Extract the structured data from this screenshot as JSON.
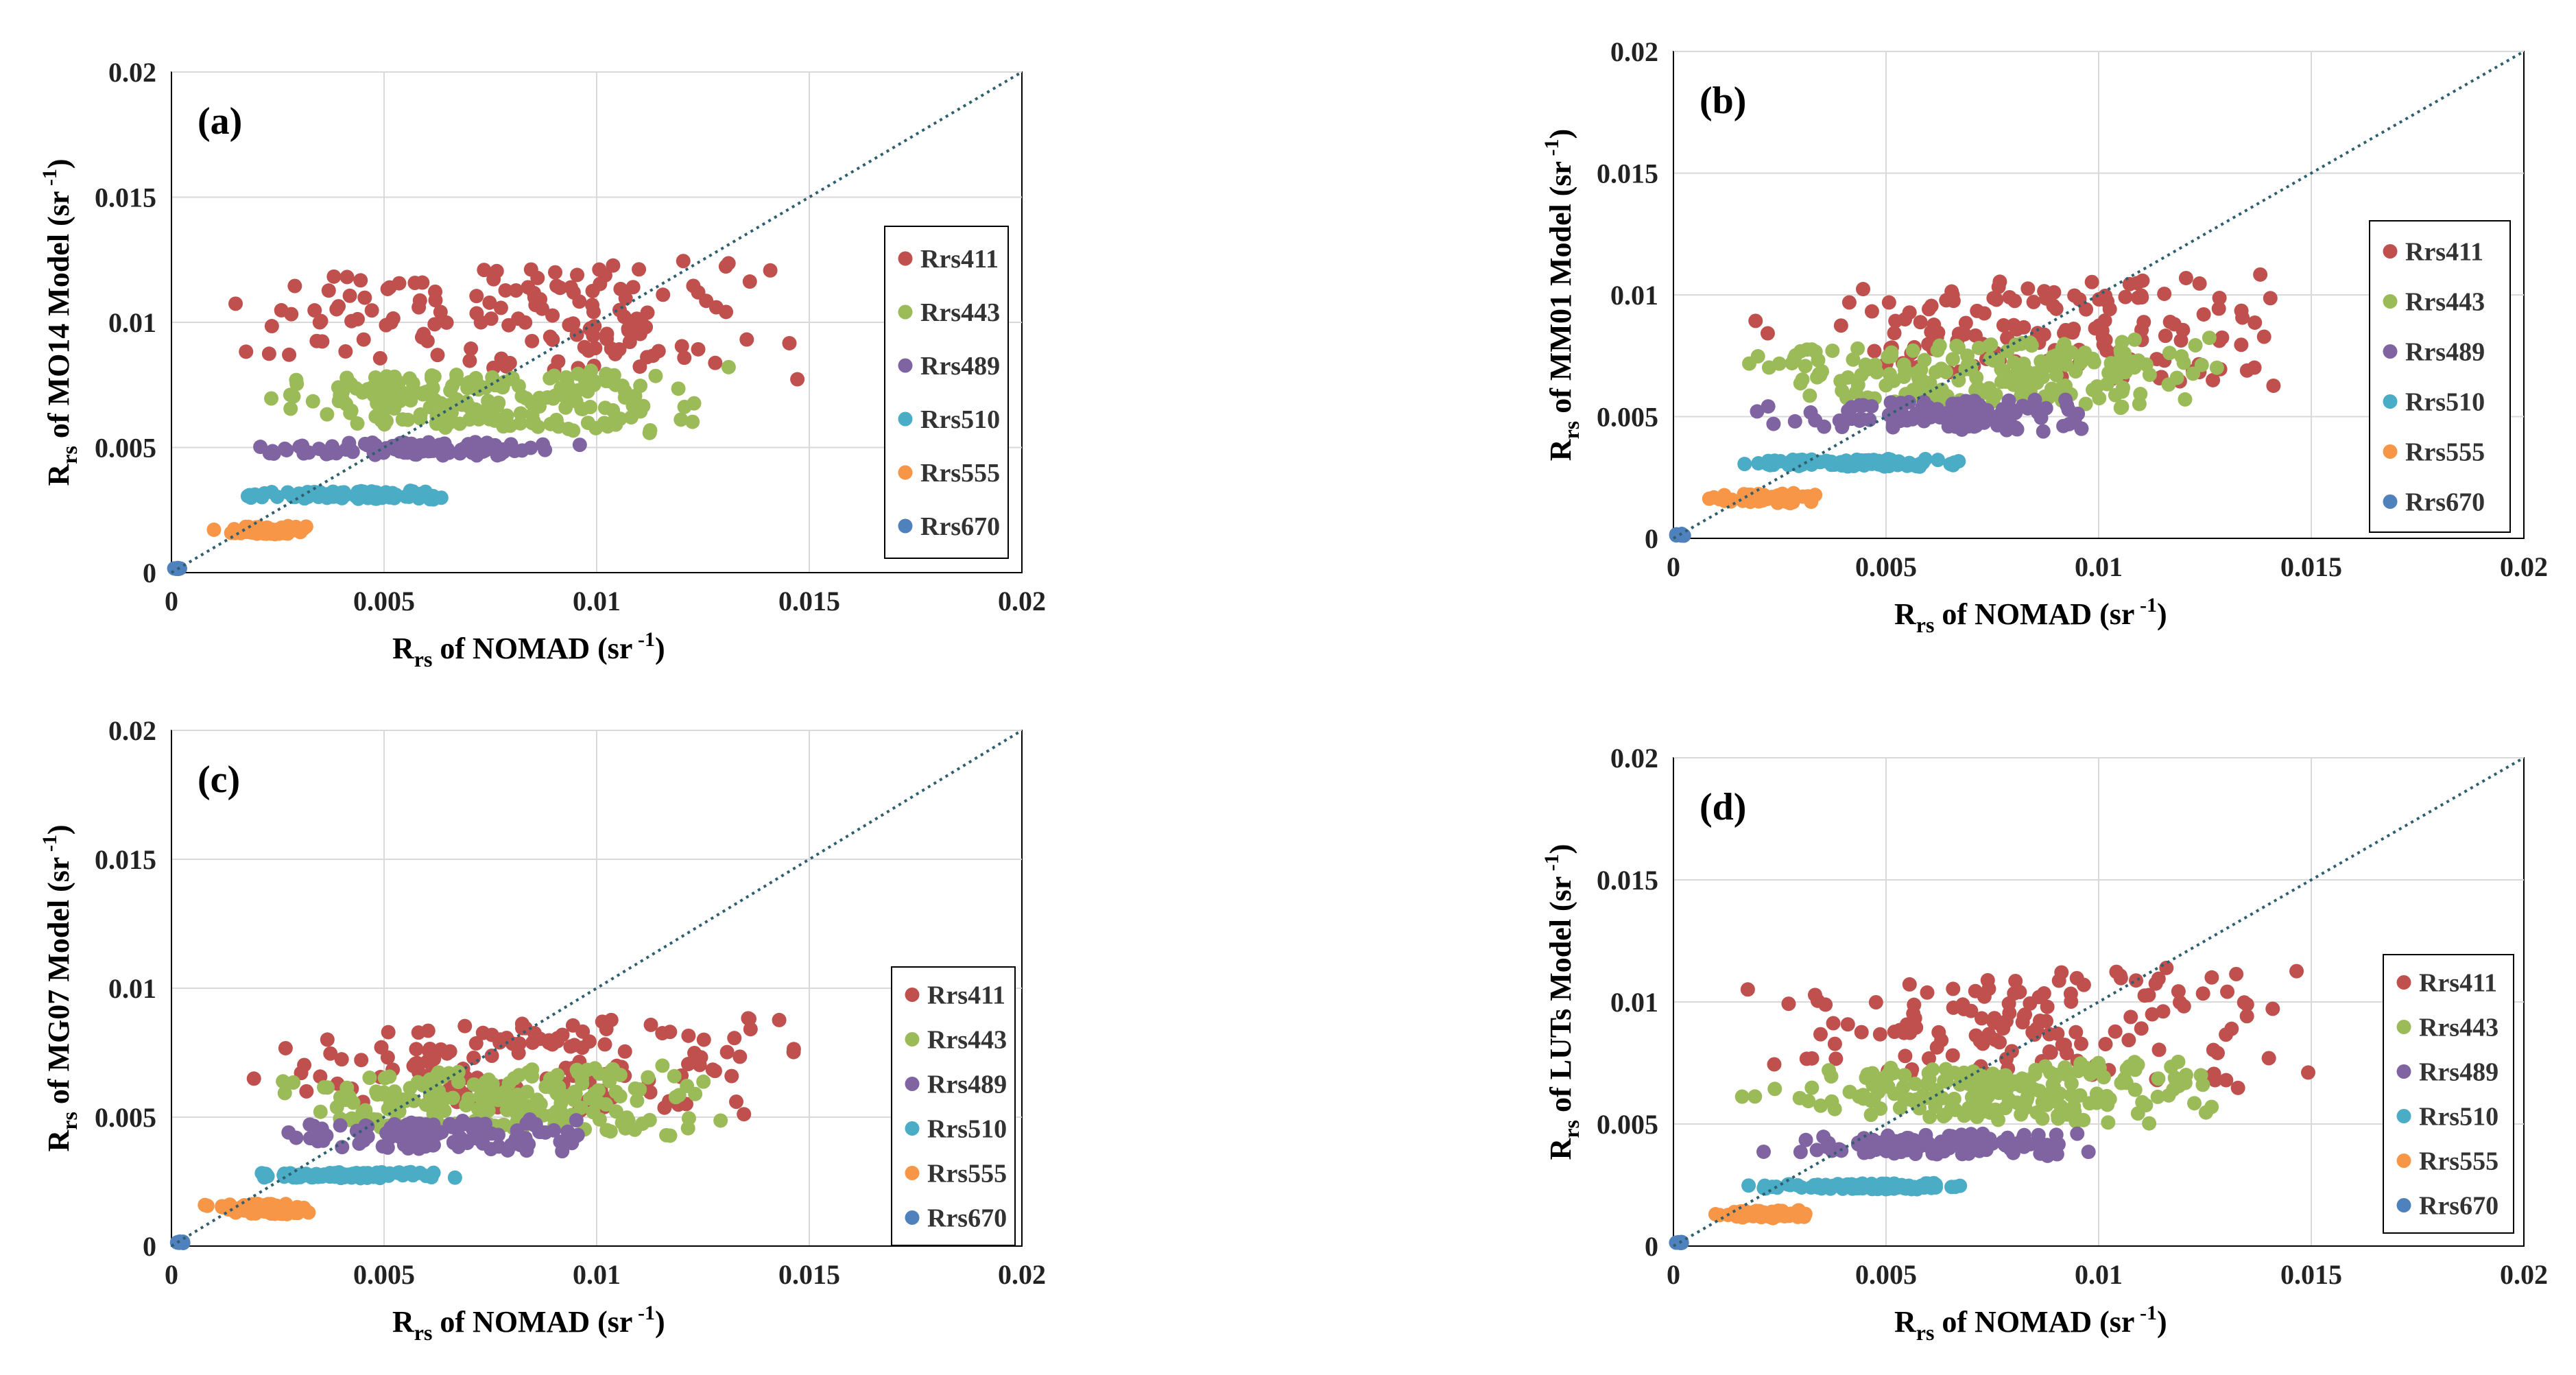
{
  "figure": {
    "series_names": [
      "Rrs411",
      "Rrs443",
      "Rrs489",
      "Rrs510",
      "Rrs555",
      "Rrs670"
    ],
    "series_colors": [
      "#c0504d",
      "#9bbb59",
      "#8064a2",
      "#4bacc6",
      "#f79646",
      "#4f81bd"
    ],
    "grid_color": "#d9d9d9",
    "one_to_one_color": "#2f5f6f"
  },
  "chart_data": [
    {
      "type": "scatter",
      "panel_label": "(a)",
      "title": "",
      "xlabel": {
        "main": "R",
        "sub": "rs",
        "rest": " of NOMAD (sr",
        "sup": "-1",
        "close": ")"
      },
      "ylabel": {
        "main": "R",
        "sub": "rs",
        "rest": " of MO14 Model (sr",
        "sup": "-1",
        "close": ")"
      },
      "xlim": [
        0,
        0.02
      ],
      "ylim": [
        0,
        0.02
      ],
      "x_ticks": [
        "0",
        "0.005",
        "0.01",
        "0.015",
        "0.02"
      ],
      "y_ticks": [
        "0",
        "0.005",
        "0.01",
        "0.015",
        "0.02"
      ],
      "grid": true,
      "one_to_one_line": true,
      "legend_position": "right",
      "series": [
        {
          "name": "Rrs411",
          "count": 150,
          "x_range": [
            0.001,
            0.0151
          ],
          "y_range": [
            0.0075,
            0.0128
          ]
        },
        {
          "name": "Rrs443",
          "count": 200,
          "x_range": [
            0.0015,
            0.0133
          ],
          "y_range": [
            0.0054,
            0.0083
          ]
        },
        {
          "name": "Rrs489",
          "count": 110,
          "x_range": [
            0.0018,
            0.0101
          ],
          "y_range": [
            0.0046,
            0.0053
          ]
        },
        {
          "name": "Rrs510",
          "count": 90,
          "x_range": [
            0.0014,
            0.007
          ],
          "y_range": [
            0.0029,
            0.0033
          ]
        },
        {
          "name": "Rrs555",
          "count": 60,
          "x_range": [
            0.0007,
            0.0034
          ],
          "y_range": [
            0.0015,
            0.0019
          ]
        },
        {
          "name": "Rrs670",
          "count": 8,
          "x_range": [
            0.0,
            0.0003
          ],
          "y_range": [
            0.0001,
            0.0002
          ]
        }
      ]
    },
    {
      "type": "scatter",
      "panel_label": "(b)",
      "title": "",
      "xlabel": {
        "main": "R",
        "sub": "rs",
        "rest": " of NOMAD (sr",
        "sup": "-1",
        "close": ")"
      },
      "ylabel": {
        "main": "R",
        "sub": "rs",
        "rest": " of MM01 Model (sr",
        "sup": "-1",
        "close": ")"
      },
      "xlim": [
        0,
        0.02
      ],
      "ylim": [
        0,
        0.02
      ],
      "x_ticks": [
        "0",
        "0.005",
        "0.01",
        "0.015",
        "0.02"
      ],
      "y_ticks": [
        "0",
        "0.005",
        "0.01",
        "0.015",
        "0.02"
      ],
      "grid": true,
      "one_to_one_line": true,
      "legend_position": "right",
      "series": [
        {
          "name": "Rrs411",
          "count": 150,
          "x_range": [
            0.001,
            0.0151
          ],
          "y_range": [
            0.006,
            0.0112
          ]
        },
        {
          "name": "Rrs443",
          "count": 200,
          "x_range": [
            0.0015,
            0.0133
          ],
          "y_range": [
            0.0051,
            0.0084
          ]
        },
        {
          "name": "Rrs489",
          "count": 110,
          "x_range": [
            0.0018,
            0.0101
          ],
          "y_range": [
            0.0043,
            0.0058
          ]
        },
        {
          "name": "Rrs510",
          "count": 90,
          "x_range": [
            0.0014,
            0.007
          ],
          "y_range": [
            0.0029,
            0.0033
          ]
        },
        {
          "name": "Rrs555",
          "count": 60,
          "x_range": [
            0.0007,
            0.0034
          ],
          "y_range": [
            0.0014,
            0.0019
          ]
        },
        {
          "name": "Rrs670",
          "count": 8,
          "x_range": [
            0.0,
            0.0003
          ],
          "y_range": [
            0.0001,
            0.0002
          ]
        }
      ]
    },
    {
      "type": "scatter",
      "panel_label": "(c)",
      "title": "",
      "xlabel": {
        "main": "R",
        "sub": "rs",
        "rest": " of NOMAD (sr",
        "sup": "-1",
        "close": ")"
      },
      "ylabel": {
        "main": "R",
        "sub": "rs",
        "rest": " of MG07 Model (sr",
        "sup": "-1",
        "close": ")"
      },
      "xlim": [
        0,
        0.02
      ],
      "ylim": [
        0,
        0.02
      ],
      "x_ticks": [
        "0",
        "0.005",
        "0.01",
        "0.015",
        "0.02"
      ],
      "y_ticks": [
        "0",
        "0.005",
        "0.01",
        "0.015",
        "0.02"
      ],
      "grid": true,
      "one_to_one_line": true,
      "legend_position": "right",
      "series": [
        {
          "name": "Rrs411",
          "count": 150,
          "x_range": [
            0.001,
            0.0151
          ],
          "y_range": [
            0.0048,
            0.0092
          ]
        },
        {
          "name": "Rrs443",
          "count": 200,
          "x_range": [
            0.0015,
            0.0133
          ],
          "y_range": [
            0.0041,
            0.0072
          ]
        },
        {
          "name": "Rrs489",
          "count": 110,
          "x_range": [
            0.0018,
            0.0101
          ],
          "y_range": [
            0.0036,
            0.005
          ]
        },
        {
          "name": "Rrs510",
          "count": 90,
          "x_range": [
            0.0014,
            0.007
          ],
          "y_range": [
            0.0026,
            0.0029
          ]
        },
        {
          "name": "Rrs555",
          "count": 60,
          "x_range": [
            0.0007,
            0.0034
          ],
          "y_range": [
            0.0012,
            0.0017
          ]
        },
        {
          "name": "Rrs670",
          "count": 8,
          "x_range": [
            0.0,
            0.0003
          ],
          "y_range": [
            0.0001,
            0.0002
          ]
        }
      ]
    },
    {
      "type": "scatter",
      "panel_label": "(d)",
      "title": "",
      "xlabel": {
        "main": "R",
        "sub": "rs",
        "rest": " of NOMAD (sr",
        "sup": "-1",
        "close": ")"
      },
      "ylabel": {
        "main": "R",
        "sub": "rs",
        "rest": " of LUTs Model (sr",
        "sup": "-1",
        "close": ")"
      },
      "xlim": [
        0,
        0.02
      ],
      "ylim": [
        0,
        0.02
      ],
      "x_ticks": [
        "0",
        "0.005",
        "0.01",
        "0.015",
        "0.02"
      ],
      "y_ticks": [
        "0",
        "0.005",
        "0.01",
        "0.015",
        "0.02"
      ],
      "grid": true,
      "one_to_one_line": true,
      "legend_position": "right",
      "series": [
        {
          "name": "Rrs411",
          "count": 150,
          "x_range": [
            0.001,
            0.0151
          ],
          "y_range": [
            0.0062,
            0.0118
          ]
        },
        {
          "name": "Rrs443",
          "count": 200,
          "x_range": [
            0.0015,
            0.0133
          ],
          "y_range": [
            0.0048,
            0.0078
          ]
        },
        {
          "name": "Rrs489",
          "count": 110,
          "x_range": [
            0.0018,
            0.0101
          ],
          "y_range": [
            0.0036,
            0.0047
          ]
        },
        {
          "name": "Rrs510",
          "count": 90,
          "x_range": [
            0.0014,
            0.007
          ],
          "y_range": [
            0.0023,
            0.0026
          ]
        },
        {
          "name": "Rrs555",
          "count": 60,
          "x_range": [
            0.0007,
            0.0034
          ],
          "y_range": [
            0.0011,
            0.0015
          ]
        },
        {
          "name": "Rrs670",
          "count": 8,
          "x_range": [
            0.0,
            0.0003
          ],
          "y_range": [
            0.0001,
            0.0002
          ]
        }
      ]
    }
  ]
}
